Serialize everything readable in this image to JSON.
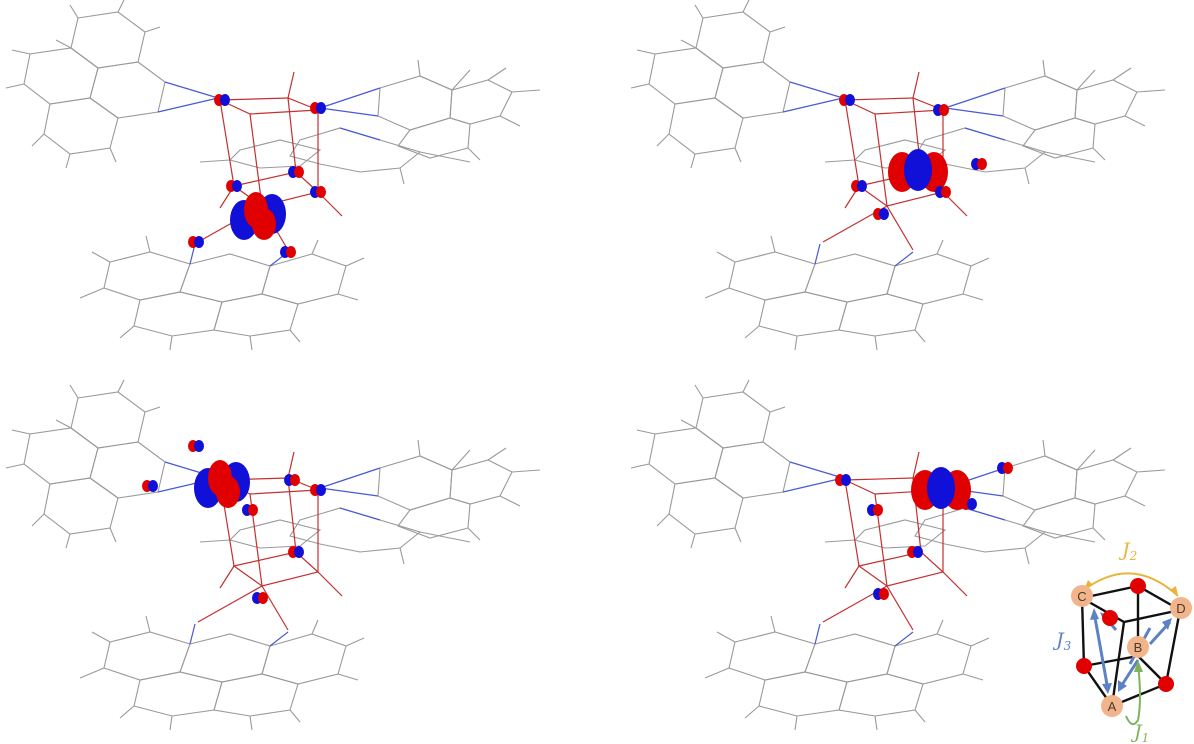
{
  "panels": [
    {
      "id": "orbital-panel-1"
    },
    {
      "id": "orbital-panel-2"
    },
    {
      "id": "orbital-panel-3"
    },
    {
      "id": "orbital-panel-4"
    }
  ],
  "scheme": {
    "nodes": [
      "A",
      "B",
      "C",
      "D"
    ],
    "couplings": [
      {
        "symbol": "J",
        "subscript": "1",
        "color": "#7fb35b"
      },
      {
        "symbol": "J",
        "subscript": "2",
        "color": "#e8b53a"
      },
      {
        "symbol": "J",
        "subscript": "3",
        "color": "#5b82c6"
      }
    ],
    "node_color": "#f2b48a",
    "oxygen_color": "#e00000"
  },
  "colors": {
    "positive_lobe": "#e00000",
    "negative_lobe": "#1010d8",
    "bond_gray": "#9a9a9a",
    "bond_blue": "#4a5ad0",
    "bond_red": "#c43030"
  }
}
